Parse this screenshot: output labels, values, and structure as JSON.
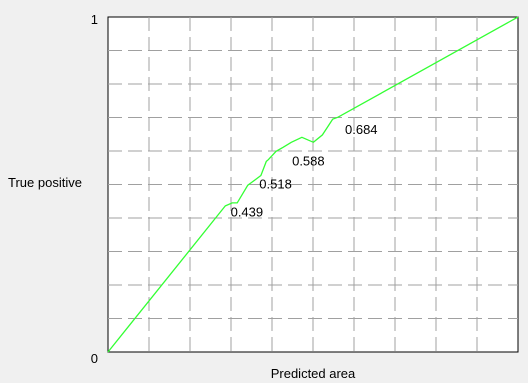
{
  "chart_data": {
    "type": "line",
    "xlabel": "Predicted area",
    "ylabel": "True positive",
    "xlim": [
      0,
      1
    ],
    "ylim": [
      0,
      1
    ],
    "y_tick_labels": [
      "0",
      "1"
    ],
    "grid": true,
    "grid_style": "dashed",
    "background": "#ffffff",
    "line_color": "#33ff33",
    "series": [
      {
        "x": [
          0.0,
          0.286,
          0.303,
          0.315,
          0.341,
          0.35,
          0.373,
          0.386,
          0.391,
          0.41,
          0.427,
          0.447,
          0.473,
          0.501,
          0.523,
          0.548,
          0.561,
          1.0
        ],
        "y": [
          0.0,
          0.436,
          0.445,
          0.445,
          0.498,
          0.506,
          0.527,
          0.569,
          0.574,
          0.599,
          0.611,
          0.626,
          0.641,
          0.626,
          0.648,
          0.695,
          0.701,
          1.0
        ]
      }
    ],
    "annotations": [
      {
        "text": "0.439",
        "x": 0.299,
        "y": 0.405
      },
      {
        "text": "0.518",
        "x": 0.369,
        "y": 0.488
      },
      {
        "text": "0.588",
        "x": 0.449,
        "y": 0.557
      },
      {
        "text": "0.684",
        "x": 0.578,
        "y": 0.651
      }
    ]
  }
}
